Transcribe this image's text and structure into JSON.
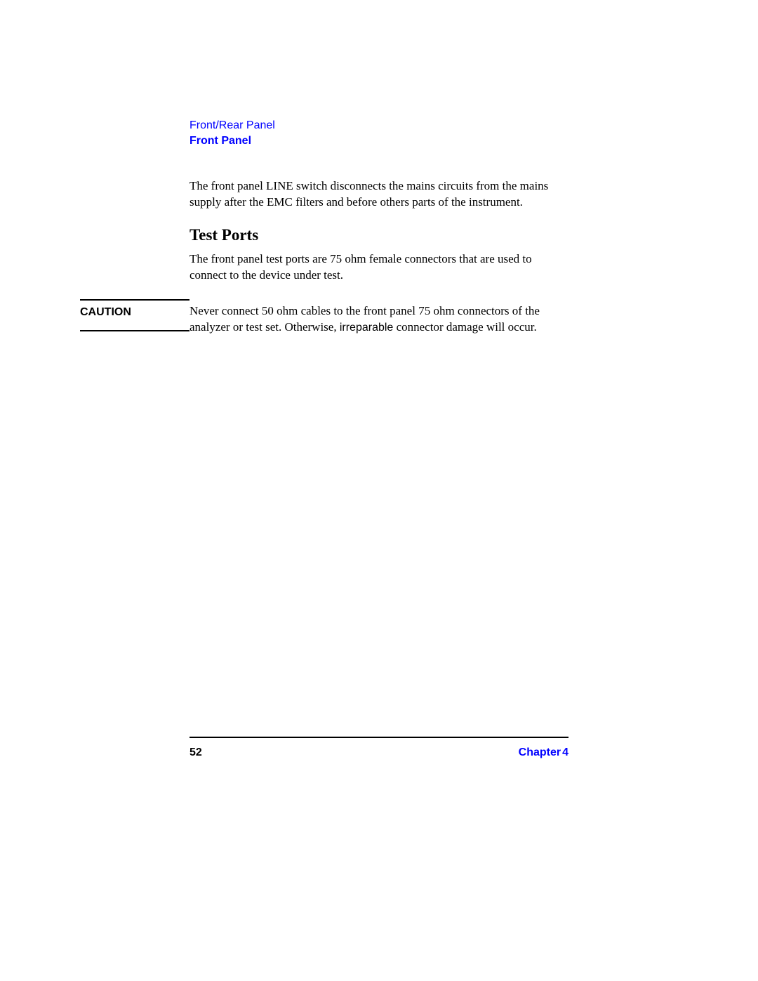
{
  "header": {
    "breadcrumb": "Front/Rear Panel",
    "title": "Front Panel"
  },
  "content": {
    "para1": "The front panel LINE switch disconnects the mains circuits from the mains supply after the EMC filters and before others parts of the instrument.",
    "section_heading": "Test Ports",
    "para2": "The front panel test ports are 75 ohm female connectors that are used to connect to the device under test."
  },
  "caution": {
    "label": "CAUTION",
    "body_pre": "Never connect 50 ohm cables to the front panel 75 ohm connectors of the analyzer or test set. Otherwise, ",
    "irreparable": "irreparable",
    "body_post": " connector damage will occur."
  },
  "footer": {
    "page_number": "52",
    "chapter_word": "Chapter",
    "chapter_num": "4"
  },
  "colors": {
    "link_blue": "#0000ff",
    "text_black": "#000000",
    "background": "#ffffff"
  },
  "typography": {
    "body_font": "Times New Roman",
    "ui_font": "Arial",
    "body_fontsize": 17,
    "heading_fontsize": 23,
    "header_fontsize": 16,
    "footer_fontsize": 16
  }
}
